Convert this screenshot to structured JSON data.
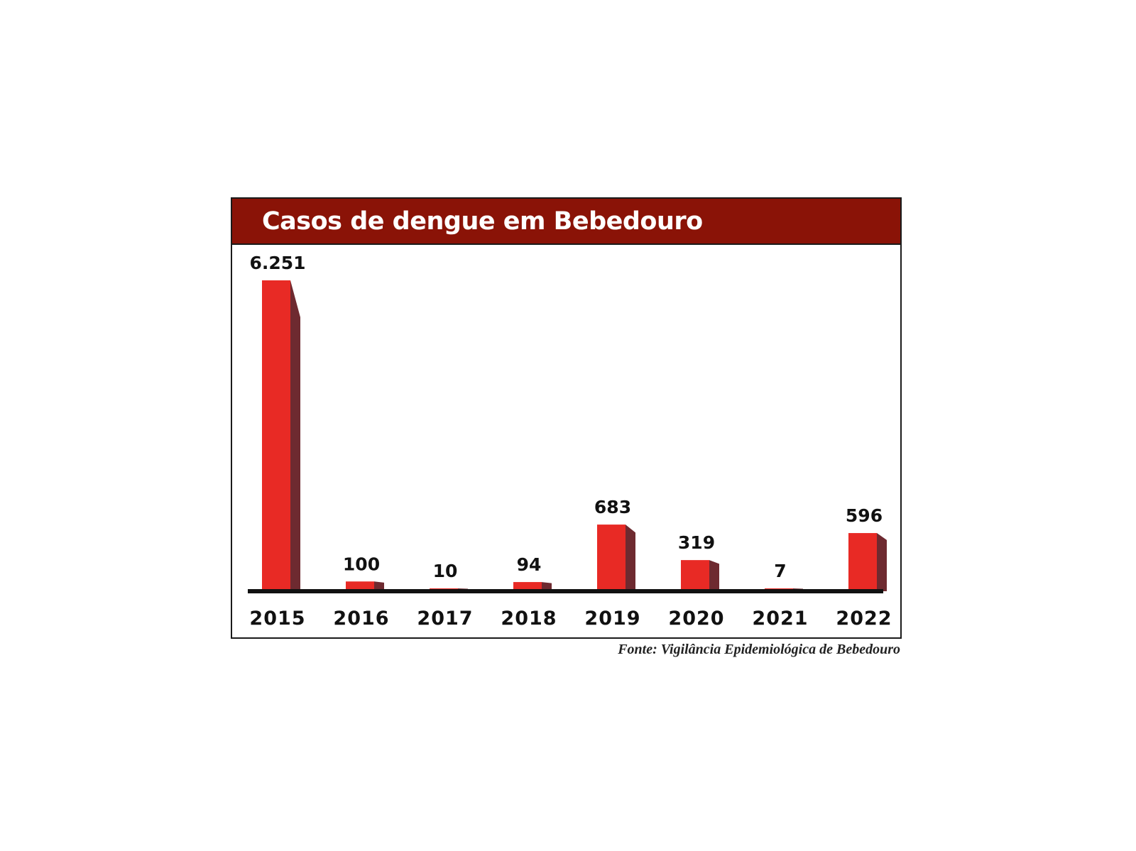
{
  "colors": {
    "header": "#8a1307",
    "bar_front": "#e82a25",
    "bar_side": "#6e2a30",
    "bar_top": "#f27e78",
    "baseline": "#111111"
  },
  "chart_data": {
    "type": "bar",
    "title": "Casos de dengue em Bebedouro",
    "categories": [
      "2015",
      "2016",
      "2017",
      "2018",
      "2019",
      "2020",
      "2021",
      "2022"
    ],
    "values": [
      6251,
      100,
      10,
      94,
      683,
      319,
      7,
      596
    ],
    "value_labels": [
      "6.251",
      "100",
      "10",
      "94",
      "683",
      "319",
      "7",
      "596"
    ],
    "source": "Fonte: Vigilância Epidemiológica de Bebedouro",
    "grid": false,
    "legend": "none"
  }
}
